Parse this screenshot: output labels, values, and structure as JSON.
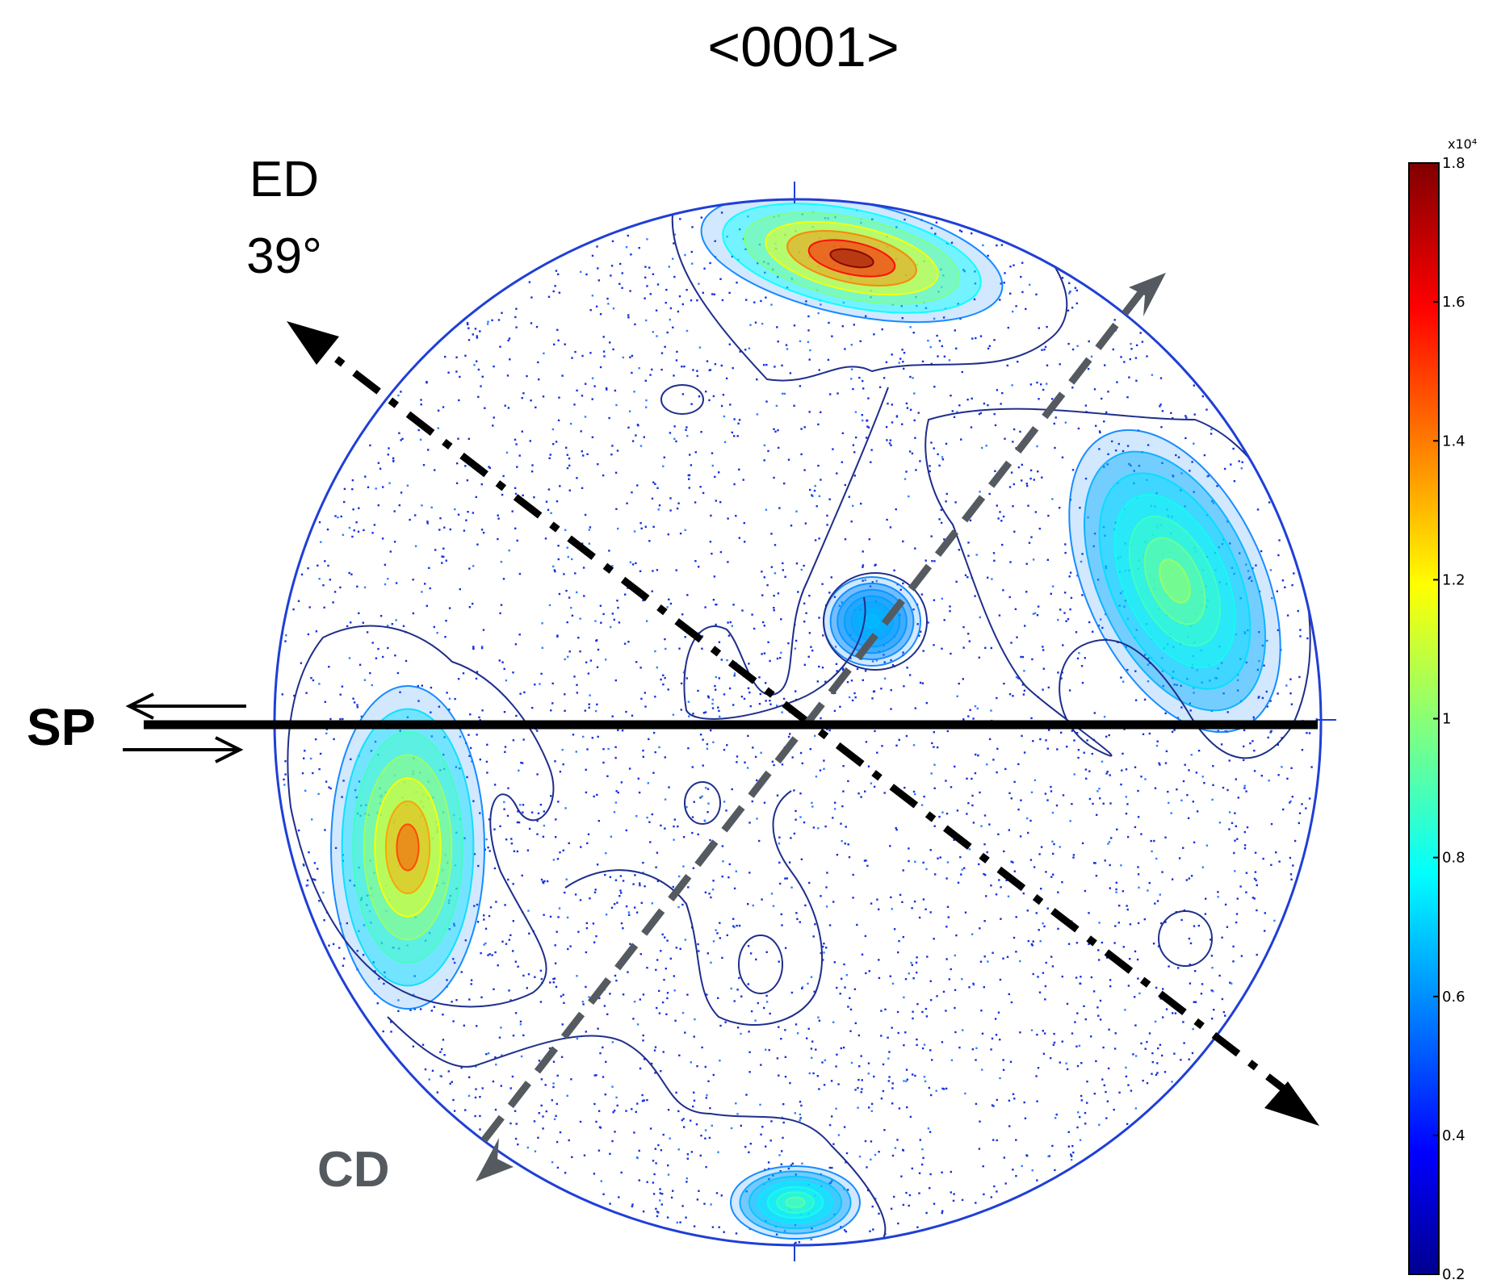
{
  "title": "<0001>",
  "axes": {
    "ed_label": "ED",
    "ed_angle": "39°",
    "sp_label": "SP",
    "cd_label": "CD"
  },
  "colors": {
    "circle": "#1f3fd6",
    "contour": "#1f2e8a",
    "ed_arrow": "#000000",
    "cd_arrow": "#555a60",
    "sp_line": "#000000"
  },
  "colorbar": {
    "exponent": "x10⁴",
    "ticks": [
      {
        "value": 1.8,
        "label": "1.8"
      },
      {
        "value": 1.6,
        "label": "1.6"
      },
      {
        "value": 1.4,
        "label": "1.4"
      },
      {
        "value": 1.2,
        "label": "1.2"
      },
      {
        "value": 1.0,
        "label": "1"
      },
      {
        "value": 0.8,
        "label": "0.8"
      },
      {
        "value": 0.6,
        "label": "0.6"
      },
      {
        "value": 0.4,
        "label": "0.4"
      },
      {
        "value": 0.2,
        "label": "0.2"
      }
    ],
    "min": 0.2,
    "max": 1.8,
    "colormap": "jet"
  },
  "clusters": [
    {
      "name": "top-peak",
      "level": 1.8
    },
    {
      "name": "right-peak",
      "level": 1.05
    },
    {
      "name": "left-peak",
      "level": 1.5
    },
    {
      "name": "bottom-peak",
      "level": 0.95
    },
    {
      "name": "center-peak",
      "level": 0.7
    }
  ]
}
